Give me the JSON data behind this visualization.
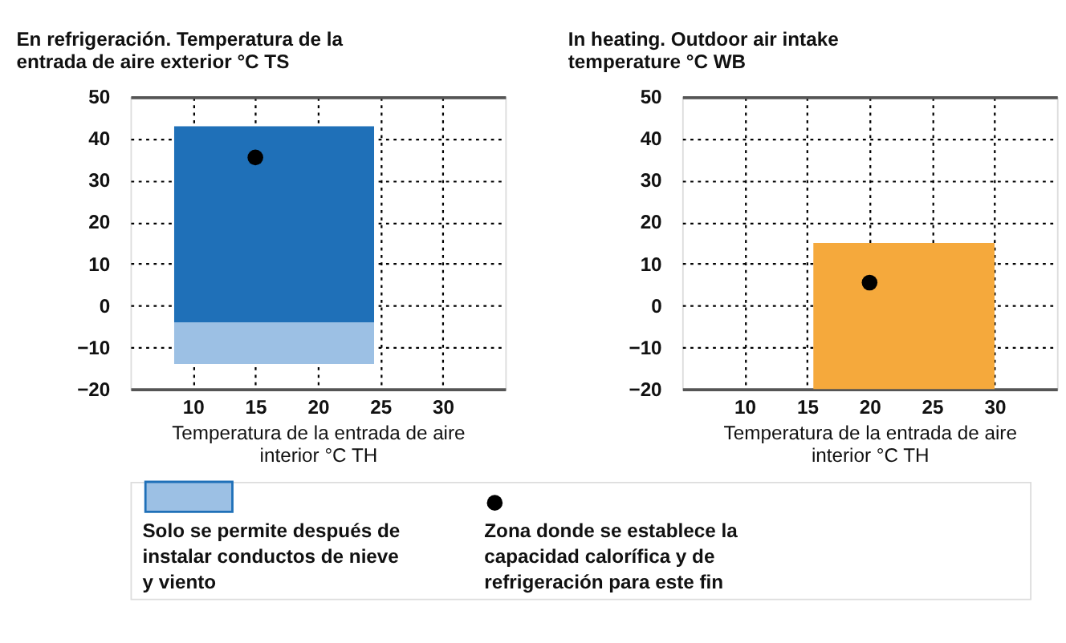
{
  "chart_data": [
    {
      "type": "area",
      "title": "En refrigeración. Temperatura de la entrada de aire exterior °C TS",
      "xlabel": "Temperatura de la entrada de aire interior °C TH",
      "xlim": [
        5,
        35
      ],
      "xticks": [
        10,
        15,
        20,
        25,
        30
      ],
      "ylim": [
        -20,
        50
      ],
      "yticks": [
        -20,
        -10,
        0,
        10,
        20,
        30,
        40,
        50
      ],
      "grid": true,
      "legend": "bottom",
      "series": [
        {
          "color": "#1f70b8",
          "x": [
            8.5,
            24.5
          ],
          "values": [
            null,
            null
          ],
          "upper": [
            43,
            43
          ],
          "lower": [
            -4,
            -4
          ]
        },
        {
          "name": "Solo se permite después de instalar conductos de nieve y viento",
          "color": "#9cc0e4",
          "x": [
            8.5,
            24.5
          ],
          "values": [
            null,
            null
          ],
          "upper": [
            -4,
            -4
          ],
          "lower": [
            -14,
            -14
          ]
        },
        {
          "type": "scatter",
          "name": "Zona donde se establece la capacidad calorífica y de refrigeración para este fin",
          "color": "#000000",
          "marker": "circle",
          "x": [
            15
          ],
          "values": [
            35.5
          ]
        }
      ]
    },
    {
      "type": "area",
      "title": "In heating. Outdoor air intake temperature °C WB",
      "xlabel": "Temperatura de la entrada de aire interior °C TH",
      "xlim": [
        5,
        35
      ],
      "xticks": [
        10,
        15,
        20,
        25,
        30
      ],
      "ylim": [
        -20,
        50
      ],
      "yticks": [
        -20,
        -10,
        0,
        10,
        20,
        30,
        40,
        50
      ],
      "grid": true,
      "series": [
        {
          "color": "#f5a93c",
          "x": [
            15.5,
            30
          ],
          "values": [
            null,
            null
          ],
          "upper": [
            15,
            15
          ],
          "lower": [
            -20,
            -20
          ]
        },
        {
          "type": "scatter",
          "color": "#000000",
          "marker": "circle",
          "x": [
            20
          ],
          "values": [
            5.5
          ]
        }
      ]
    }
  ]
}
